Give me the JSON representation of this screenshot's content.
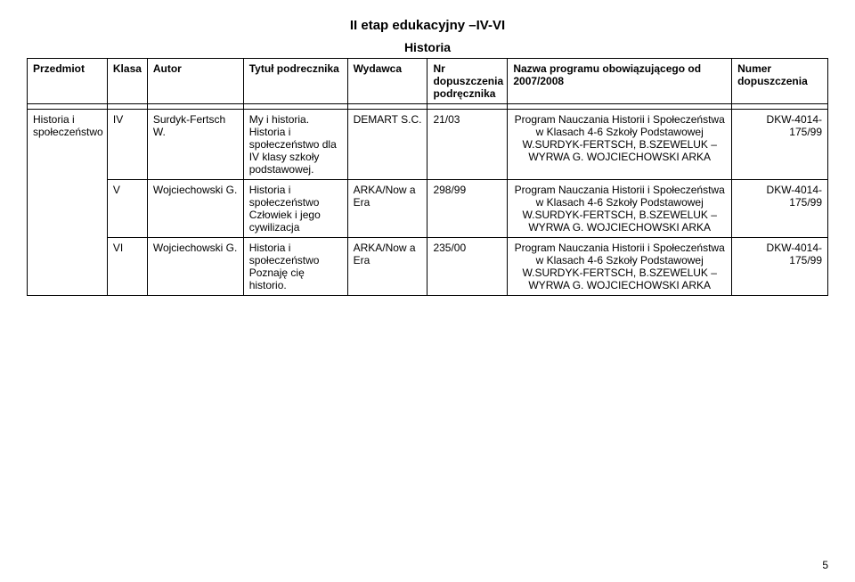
{
  "stage_title": "II etap edukacyjny –IV-VI",
  "subject_title": "Historia",
  "headers": {
    "przedmiot": "Przedmiot",
    "klasa": "Klasa",
    "autor": "Autor",
    "tytul": "Tytuł podrecznika",
    "wydawca": "Wydawca",
    "nr": "Nr dopuszczenia podręcznika",
    "nazwa": "Nazwa programu obowiązującego od 2007/2008",
    "numer": "Numer dopuszczenia"
  },
  "subject_cell": "Historia i społeczeństwo",
  "rows": [
    {
      "klasa": "IV",
      "autor": "Surdyk-Fertsch W.",
      "tytul": "My i historia. Historia i społeczeństwo dla IV klasy szkoły podstawowej.",
      "wydawca": "DEMART S.C.",
      "nr": "21/03",
      "nazwa": "Program Nauczania Historii\ni Społeczeństwa w Klasach 4-6 Szkoły Podstawowej W.SURDYK-FERTSCH, B.SZEWELUK –WYRWA G. WOJCIECHOWSKI ARKA",
      "numer": "DKW-4014-175/99"
    },
    {
      "klasa": "V",
      "autor": "Wojciechowski G.",
      "tytul": "Historia i społeczeństwo Człowiek i jego cywilizacja",
      "wydawca": "ARKA/Now a Era",
      "nr": "298/99",
      "nazwa": "Program Nauczania Historii\ni Społeczeństwa w Klasach 4-6 Szkoły Podstawowej W.SURDYK-FERTSCH, B.SZEWELUK –WYRWA G. WOJCIECHOWSKI ARKA",
      "numer": "DKW-4014-175/99"
    },
    {
      "klasa": "VI",
      "autor": "Wojciechowski G.",
      "tytul": "Historia i społeczeństwo Poznaję cię historio.",
      "wydawca": "ARKA/Now a Era",
      "nr": "235/00",
      "nazwa": "Program Nauczania Historii i Społeczeństwa w Klasach 4-6 Szkoły Podstawowej W.SURDYK-FERTSCH, B.SZEWELUK –WYRWA G. WOJCIECHOWSKI ARKA",
      "numer": "DKW-4014-175/99"
    }
  ],
  "page_number": "5"
}
